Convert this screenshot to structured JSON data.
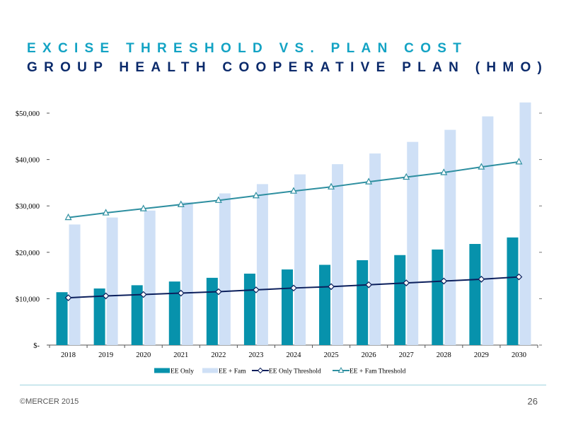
{
  "titles": {
    "line1": "EXCISE THRESHOLD VS. PLAN COST",
    "line2": "GROUP HEALTH COOPERATIVE PLAN (HMO)"
  },
  "footer": {
    "copyright": "©MERCER 2015",
    "page_number": "26"
  },
  "colors": {
    "title_accent": "#13A3C4",
    "title_dark": "#0B2A6B",
    "ee_only_bar": "#0792AC",
    "ee_fam_bar": "#CFE0F6",
    "ee_only_threshold_line": "#0B1F5C",
    "ee_fam_threshold_line": "#2E8FA0"
  },
  "chart_data": {
    "type": "bar",
    "title": "",
    "xlabel": "",
    "ylabel": "",
    "ylim": [
      0,
      50000
    ],
    "y_ticks": [
      {
        "value": 0,
        "label": "$-"
      },
      {
        "value": 10000,
        "label": "$10,000"
      },
      {
        "value": 20000,
        "label": "$20,000"
      },
      {
        "value": 30000,
        "label": "$30,000"
      },
      {
        "value": 40000,
        "label": "$40,000"
      },
      {
        "value": 50000,
        "label": "$50,000"
      }
    ],
    "categories": [
      "2018",
      "2019",
      "2020",
      "2021",
      "2022",
      "2023",
      "2024",
      "2025",
      "2026",
      "2027",
      "2028",
      "2029",
      "2030"
    ],
    "legend_position": "bottom",
    "series": [
      {
        "name": "EE Only",
        "kind": "bar",
        "values": [
          11400,
          12200,
          12900,
          13700,
          14500,
          15400,
          16300,
          17300,
          18300,
          19400,
          20600,
          21800,
          23200
        ]
      },
      {
        "name": "EE + Fam",
        "kind": "bar",
        "values": [
          26000,
          27500,
          29000,
          30800,
          32700,
          34700,
          36800,
          39000,
          41300,
          43800,
          46400,
          49300,
          52300
        ]
      },
      {
        "name": "EE Only Threshold",
        "kind": "line",
        "marker": "diamond",
        "values": [
          10200,
          10600,
          10900,
          11200,
          11500,
          11900,
          12300,
          12600,
          13000,
          13400,
          13800,
          14200,
          14700
        ]
      },
      {
        "name": "EE + Fam Threshold",
        "kind": "line",
        "marker": "triangle",
        "values": [
          27500,
          28500,
          29400,
          30300,
          31200,
          32200,
          33200,
          34100,
          35200,
          36200,
          37200,
          38400,
          39500
        ]
      }
    ]
  }
}
